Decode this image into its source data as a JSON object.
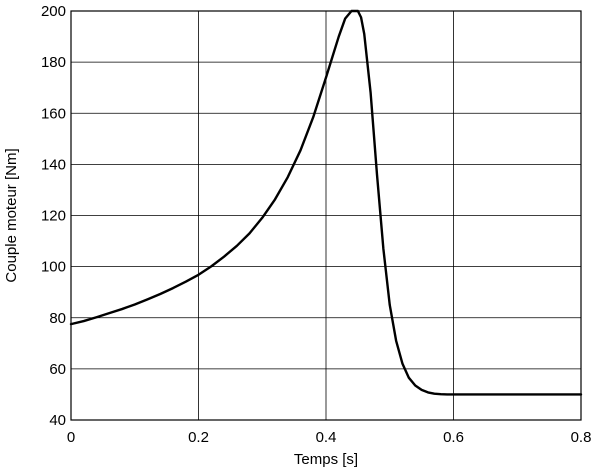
{
  "chart_data": {
    "type": "line",
    "xlabel": "Temps [s]",
    "ylabel": "Couple moteur [Nm]",
    "xlim": [
      0,
      0.8
    ],
    "ylim": [
      40,
      200
    ],
    "xticks": [
      0,
      0.2,
      0.4,
      0.6,
      0.8
    ],
    "xtick_labels": [
      "0",
      "0.2",
      "0.4",
      "0.6",
      "0.8"
    ],
    "yticks": [
      40,
      60,
      80,
      100,
      120,
      140,
      160,
      180,
      200
    ],
    "ytick_labels": [
      "40",
      "60",
      "80",
      "100",
      "120",
      "140",
      "160",
      "180",
      "200"
    ],
    "grid": true,
    "legend": "none",
    "series": [
      {
        "color": "#000000",
        "x": [
          0,
          0.02,
          0.04,
          0.06,
          0.08,
          0.1,
          0.12,
          0.14,
          0.16,
          0.18,
          0.2,
          0.22,
          0.24,
          0.26,
          0.28,
          0.3,
          0.32,
          0.34,
          0.36,
          0.38,
          0.4,
          0.41,
          0.42,
          0.43,
          0.44,
          0.45,
          0.455,
          0.46,
          0.47,
          0.48,
          0.49,
          0.5,
          0.51,
          0.52,
          0.53,
          0.54,
          0.55,
          0.56,
          0.57,
          0.58,
          0.59,
          0.6,
          0.65,
          0.7,
          0.75,
          0.8
        ],
        "y": [
          77.5,
          78.7,
          80.2,
          81.8,
          83.4,
          85.2,
          87.2,
          89.3,
          91.6,
          94.1,
          96.8,
          100.1,
          103.9,
          108.1,
          113.0,
          119.1,
          126.3,
          135.0,
          145.5,
          158.5,
          174.0,
          182.0,
          190.0,
          197.0,
          200.0,
          200.0,
          197.5,
          191.0,
          168.0,
          136.0,
          107.0,
          85.0,
          71.0,
          62.0,
          56.5,
          53.5,
          51.8,
          50.8,
          50.3,
          50.1,
          50.0,
          50.0,
          50.0,
          50.0,
          50.0,
          50.0
        ]
      }
    ]
  }
}
